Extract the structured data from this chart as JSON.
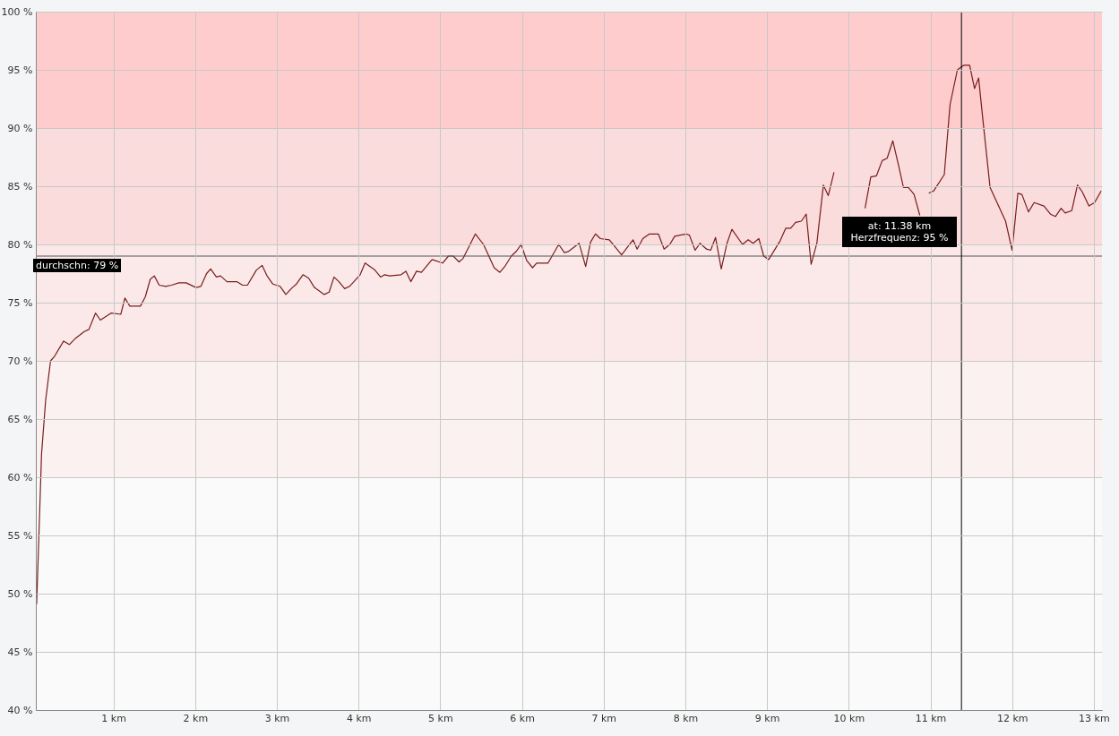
{
  "chart_data": {
    "type": "line",
    "color": "#7a1c1c",
    "x": [
      0.06,
      0.12,
      0.17,
      0.23,
      0.28,
      0.39,
      0.46,
      0.53,
      0.64,
      0.7,
      0.78,
      0.84,
      0.97,
      1.09,
      1.14,
      1.2,
      1.33,
      1.39,
      1.45,
      1.5,
      1.56,
      1.64,
      1.71,
      1.8,
      1.89,
      2.01,
      2.07,
      2.14,
      2.19,
      2.26,
      2.31,
      2.39,
      2.51,
      2.58,
      2.64,
      2.75,
      2.82,
      2.88,
      2.95,
      3.04,
      3.11,
      3.19,
      3.24,
      3.32,
      3.39,
      3.46,
      3.58,
      3.64,
      3.7,
      3.76,
      3.83,
      3.89,
      4.02,
      4.08,
      4.2,
      4.27,
      4.32,
      4.38,
      4.52,
      4.58,
      4.64,
      4.71,
      4.77,
      4.9,
      5.03,
      5.1,
      5.16,
      5.23,
      5.28,
      5.43,
      5.53,
      5.66,
      5.73,
      5.79,
      5.87,
      5.93,
      5.99,
      6.06,
      6.13,
      6.18,
      6.32,
      6.45,
      6.52,
      6.57,
      6.7,
      6.78,
      6.84,
      6.9,
      6.96,
      7.07,
      7.22,
      7.36,
      7.41,
      7.48,
      7.56,
      7.67,
      7.74,
      7.81,
      7.87,
      8.01,
      8.05,
      8.12,
      8.18,
      8.26,
      8.31,
      8.37,
      8.44,
      8.51,
      8.57,
      8.7,
      8.77,
      8.83,
      8.9,
      8.96,
      9.02,
      9.16,
      9.23,
      9.29,
      9.35,
      9.42,
      9.48,
      9.54,
      9.61,
      9.69,
      9.75,
      9.82,
      9.96,
      10.2,
      10.27,
      10.34,
      10.41,
      10.47,
      10.54,
      10.61,
      10.67,
      10.73,
      10.8,
      10.87,
      10.92,
      10.98,
      11.04,
      11.17,
      11.24,
      11.33,
      11.41,
      11.48,
      11.54,
      11.59,
      11.65,
      11.73,
      11.92,
      12.0,
      12.07,
      12.12,
      12.2,
      12.27,
      12.39,
      12.47,
      12.53,
      12.6,
      12.65,
      12.73,
      12.8,
      12.86,
      12.94,
      13.01,
      13.09
    ],
    "values": [
      49.1,
      62.0,
      66.6,
      70.0,
      70.4,
      71.7,
      71.4,
      71.9,
      72.5,
      72.7,
      74.1,
      73.5,
      74.1,
      74.0,
      75.4,
      74.7,
      74.7,
      75.5,
      77.0,
      77.3,
      76.5,
      76.4,
      76.5,
      76.7,
      76.7,
      76.3,
      76.4,
      77.5,
      77.9,
      77.2,
      77.3,
      76.8,
      76.8,
      76.5,
      76.5,
      77.8,
      78.2,
      77.3,
      76.6,
      76.4,
      75.7,
      76.3,
      76.6,
      77.4,
      77.1,
      76.3,
      75.7,
      75.9,
      77.2,
      76.8,
      76.2,
      76.4,
      77.4,
      78.4,
      77.8,
      77.2,
      77.4,
      77.3,
      77.4,
      77.7,
      76.8,
      77.7,
      77.6,
      78.7,
      78.4,
      79.0,
      79.0,
      78.5,
      78.8,
      80.9,
      80.0,
      78.0,
      77.6,
      78.1,
      79.0,
      79.4,
      80.0,
      78.6,
      78.0,
      78.4,
      78.4,
      80.0,
      79.3,
      79.4,
      80.1,
      78.1,
      80.2,
      80.9,
      80.5,
      80.4,
      79.1,
      80.4,
      79.6,
      80.5,
      80.9,
      80.9,
      79.6,
      80.0,
      80.7,
      80.9,
      80.8,
      79.5,
      80.1,
      79.6,
      79.5,
      80.6,
      77.9,
      80.1,
      81.3,
      80.0,
      80.4,
      80.1,
      80.5,
      79.0,
      78.7,
      80.3,
      81.4,
      81.4,
      81.9,
      82.0,
      82.6,
      78.3,
      80.1,
      85.1,
      84.2,
      86.2,
      null,
      83.1,
      85.8,
      85.9,
      87.2,
      87.4,
      88.9,
      86.8,
      84.9,
      84.9,
      84.3,
      82.5,
      null,
      84.4,
      84.6,
      86.0,
      92.0,
      95.0,
      95.4,
      95.4,
      93.4,
      94.3,
      90.2,
      84.9,
      82.0,
      79.5,
      84.4,
      84.3,
      82.8,
      83.6,
      83.3,
      82.6,
      82.4,
      83.1,
      82.7,
      82.9,
      85.1,
      84.5,
      83.3,
      83.6,
      84.6
    ],
    "xlim": [
      0.05,
      13.1
    ],
    "ylim": [
      40,
      100
    ],
    "xticks": [
      {
        "value": 1,
        "label": "1 km"
      },
      {
        "value": 2,
        "label": "2 km"
      },
      {
        "value": 3,
        "label": "3 km"
      },
      {
        "value": 4,
        "label": "4 km"
      },
      {
        "value": 5,
        "label": "5 km"
      },
      {
        "value": 6,
        "label": "6 km"
      },
      {
        "value": 7,
        "label": "7 km"
      },
      {
        "value": 8,
        "label": "8 km"
      },
      {
        "value": 9,
        "label": "9 km"
      },
      {
        "value": 10,
        "label": "10 km"
      },
      {
        "value": 11,
        "label": "11 km"
      },
      {
        "value": 12,
        "label": "12 km"
      },
      {
        "value": 13,
        "label": "13 km"
      }
    ],
    "yticks": [
      {
        "value": 40,
        "label": "40 %"
      },
      {
        "value": 45,
        "label": "45 %"
      },
      {
        "value": 50,
        "label": "50 %"
      },
      {
        "value": 55,
        "label": "55 %"
      },
      {
        "value": 60,
        "label": "60 %"
      },
      {
        "value": 65,
        "label": "65 %"
      },
      {
        "value": 70,
        "label": "70 %"
      },
      {
        "value": 75,
        "label": "75 %"
      },
      {
        "value": 80,
        "label": "80 %"
      },
      {
        "value": 85,
        "label": "85 %"
      },
      {
        "value": 90,
        "label": "90 %"
      },
      {
        "value": 95,
        "label": "95 %"
      },
      {
        "value": 100,
        "label": "100 %"
      }
    ],
    "grid": true,
    "bands": [
      {
        "axis": "y",
        "from": 90,
        "to": 100,
        "color": "#fecccc"
      },
      {
        "axis": "y",
        "from": 80,
        "to": 90,
        "color": "#fadcdc"
      },
      {
        "axis": "y",
        "from": 70,
        "to": 80,
        "color": "#fbe9e9"
      },
      {
        "axis": "y",
        "from": 60,
        "to": 70,
        "color": "#fbf1f1"
      }
    ],
    "ref_lines": [
      {
        "axis": "y",
        "value": 79,
        "label": "durchschn: 79 %",
        "color": "#555555"
      },
      {
        "axis": "x",
        "value": 11.38,
        "label": null,
        "color": "#000000"
      }
    ],
    "annotations": [
      "at: 11.38 km",
      "Herzfrequenz: 95 %"
    ]
  }
}
